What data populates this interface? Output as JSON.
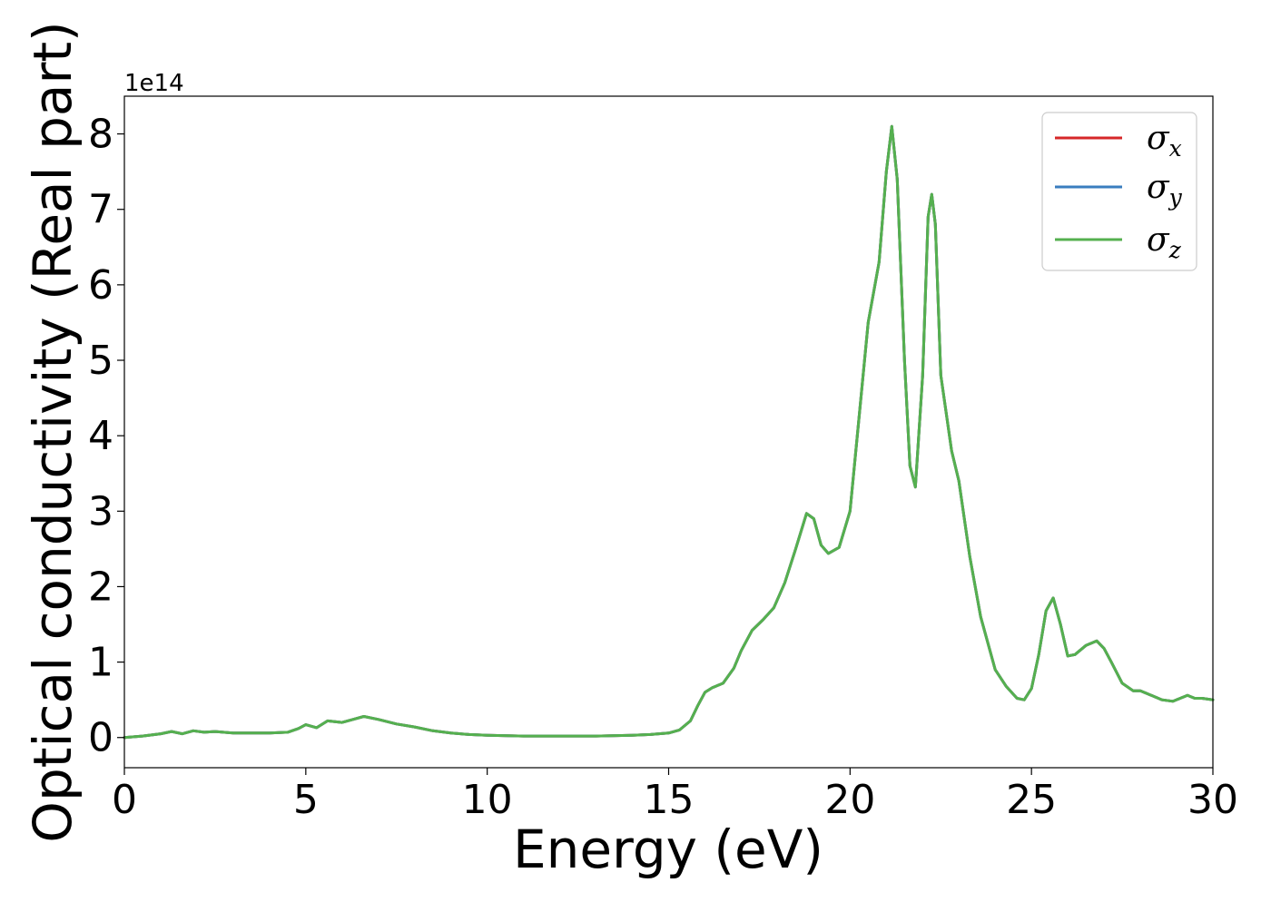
{
  "chart_data": {
    "type": "line",
    "xlabel": "Energy (eV)",
    "ylabel": "Optical conductivity (Real part)",
    "y_offset_text": "1e14",
    "xlim": [
      0,
      30
    ],
    "ylim": [
      -0.4,
      8.5
    ],
    "x_ticks": [
      0,
      5,
      10,
      15,
      20,
      25,
      30
    ],
    "x_tick_labels": [
      "0",
      "5",
      "10",
      "15",
      "20",
      "25",
      "30"
    ],
    "y_ticks": [
      0,
      1,
      2,
      3,
      4,
      5,
      6,
      7,
      8
    ],
    "y_tick_labels": [
      "0",
      "1",
      "2",
      "3",
      "4",
      "5",
      "6",
      "7",
      "8"
    ],
    "grid": false,
    "legend_position": "top-right",
    "series": [
      {
        "name": "σx",
        "symbol": "σ",
        "subscript": "x",
        "color": "#d62728"
      },
      {
        "name": "σy",
        "symbol": "σ",
        "subscript": "y",
        "color": "#3a7dbf"
      },
      {
        "name": "σz",
        "symbol": "σ",
        "subscript": "z",
        "color": "#55b04f"
      }
    ],
    "x": [
      0,
      0.5,
      1.0,
      1.3,
      1.6,
      1.9,
      2.2,
      2.5,
      3.0,
      3.5,
      4.0,
      4.5,
      4.8,
      5.0,
      5.3,
      5.6,
      6.0,
      6.3,
      6.6,
      7.0,
      7.5,
      8.0,
      8.5,
      9.0,
      9.5,
      10.0,
      11.0,
      12.0,
      13.0,
      14.0,
      14.5,
      15.0,
      15.3,
      15.6,
      15.8,
      16.0,
      16.2,
      16.5,
      16.8,
      17.0,
      17.3,
      17.6,
      17.9,
      18.2,
      18.5,
      18.8,
      19.0,
      19.2,
      19.4,
      19.7,
      20.0,
      20.2,
      20.5,
      20.8,
      21.0,
      21.15,
      21.3,
      21.5,
      21.65,
      21.8,
      22.0,
      22.15,
      22.25,
      22.35,
      22.5,
      22.8,
      23.0,
      23.3,
      23.6,
      24.0,
      24.3,
      24.6,
      24.8,
      25.0,
      25.2,
      25.4,
      25.6,
      25.8,
      26.0,
      26.2,
      26.5,
      26.8,
      27.0,
      27.2,
      27.5,
      27.8,
      28.0,
      28.3,
      28.6,
      28.9,
      29.1,
      29.3,
      29.5,
      29.7,
      30.0
    ],
    "values": [
      0.0,
      0.02,
      0.05,
      0.08,
      0.05,
      0.09,
      0.07,
      0.08,
      0.06,
      0.06,
      0.06,
      0.07,
      0.12,
      0.17,
      0.13,
      0.22,
      0.2,
      0.24,
      0.28,
      0.24,
      0.18,
      0.14,
      0.09,
      0.06,
      0.04,
      0.03,
      0.02,
      0.02,
      0.02,
      0.03,
      0.04,
      0.06,
      0.1,
      0.22,
      0.42,
      0.6,
      0.66,
      0.72,
      0.92,
      1.15,
      1.42,
      1.56,
      1.72,
      2.05,
      2.5,
      2.97,
      2.9,
      2.55,
      2.44,
      2.52,
      3.0,
      4.0,
      5.5,
      6.3,
      7.5,
      8.1,
      7.4,
      5.0,
      3.6,
      3.32,
      4.8,
      6.9,
      7.2,
      6.8,
      4.8,
      3.8,
      3.4,
      2.4,
      1.6,
      0.9,
      0.68,
      0.52,
      0.5,
      0.65,
      1.1,
      1.68,
      1.85,
      1.5,
      1.08,
      1.1,
      1.22,
      1.28,
      1.18,
      1.0,
      0.72,
      0.62,
      0.62,
      0.56,
      0.5,
      0.48,
      0.52,
      0.56,
      0.52,
      0.52,
      0.5
    ]
  }
}
